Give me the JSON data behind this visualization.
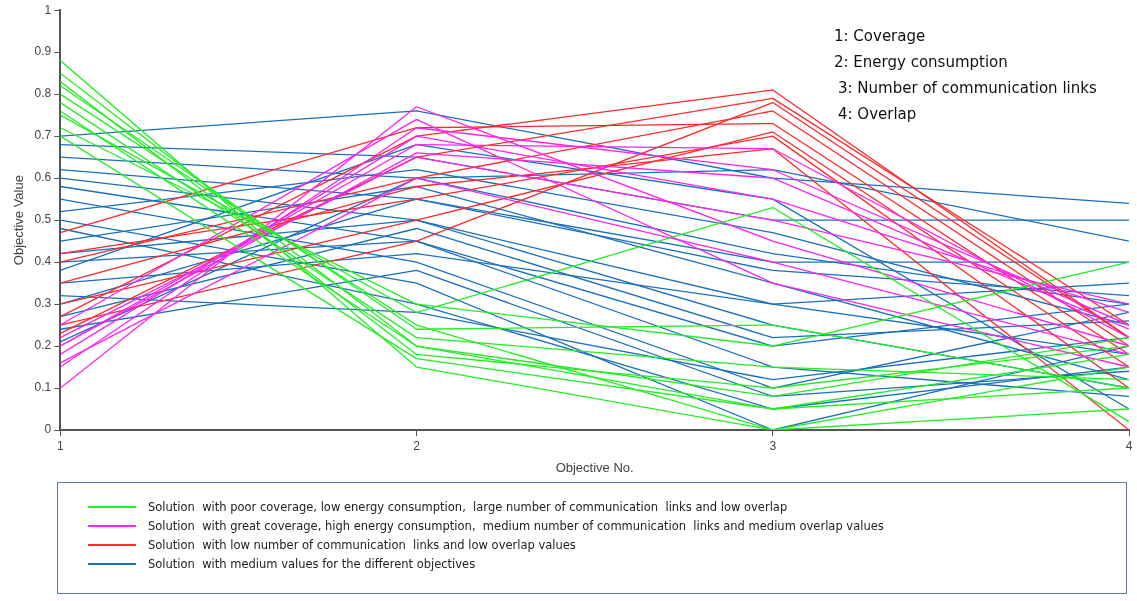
{
  "chart_data": {
    "type": "line",
    "xlabel": "Objective No.",
    "ylabel": "Objective Value",
    "x": [
      1,
      2,
      3,
      4
    ],
    "xlim": [
      1,
      4
    ],
    "xticks": [
      1,
      2,
      3,
      4
    ],
    "ylim": [
      0,
      1
    ],
    "yticks": [
      0,
      0.1,
      0.2,
      0.3,
      0.4,
      0.5,
      0.6,
      0.7,
      0.8,
      0.9,
      1
    ],
    "grid": false,
    "legend": "bottom",
    "marker": "none",
    "line_style": "solid",
    "annotations": [
      "1: Coverage",
      "2: Energy consumption",
      "3: Number of communication links",
      "4: Overlap"
    ],
    "series": [
      {
        "name": "Solution  with poor coverage, low energy consumption,  large number of communication  links and low overlap",
        "color": "#22ee22",
        "values": [
          0.88,
          0.15,
          0.0,
          0.05
        ]
      },
      {
        "color": "#22ee22",
        "values": [
          0.85,
          0.2,
          0.05,
          0.1
        ]
      },
      {
        "color": "#22ee22",
        "values": [
          0.83,
          0.18,
          0.1,
          0.2
        ]
      },
      {
        "color": "#22ee22",
        "values": [
          0.8,
          0.25,
          0.0,
          0.15
        ]
      },
      {
        "color": "#22ee22",
        "values": [
          0.78,
          0.22,
          0.15,
          0.12
        ]
      },
      {
        "color": "#22ee22",
        "values": [
          0.75,
          0.28,
          0.53,
          0.02
        ]
      },
      {
        "color": "#22ee22",
        "values": [
          0.72,
          0.3,
          0.2,
          0.4
        ]
      },
      {
        "color": "#22ee22",
        "values": [
          0.7,
          0.17,
          0.05,
          0.18
        ]
      },
      {
        "color": "#22ee22",
        "values": [
          0.82,
          0.24,
          0.25,
          0.1
        ]
      },
      {
        "color": "#22ee22",
        "values": [
          0.76,
          0.2,
          0.08,
          0.22
        ]
      },
      {
        "name": "Solution  with great coverage, high energy consumption,  medium number of communication  links and medium overlap values",
        "color": "#ff22ee",
        "values": [
          0.1,
          0.77,
          0.45,
          0.2
        ]
      },
      {
        "color": "#ff22ee",
        "values": [
          0.15,
          0.72,
          0.62,
          0.25
        ]
      },
      {
        "color": "#ff22ee",
        "values": [
          0.18,
          0.7,
          0.55,
          0.28
        ]
      },
      {
        "color": "#ff22ee",
        "values": [
          0.2,
          0.68,
          0.67,
          0.22
        ]
      },
      {
        "color": "#ff22ee",
        "values": [
          0.22,
          0.65,
          0.5,
          0.3
        ]
      },
      {
        "color": "#ff22ee",
        "values": [
          0.16,
          0.6,
          0.4,
          0.18
        ]
      },
      {
        "color": "#ff22ee",
        "values": [
          0.25,
          0.74,
          0.35,
          0.15
        ]
      },
      {
        "color": "#ff22ee",
        "values": [
          0.2,
          0.66,
          0.6,
          0.24
        ]
      },
      {
        "name": "Solution  with low number of communication  links and low overlap values",
        "color": "#ff2a2a",
        "values": [
          0.27,
          0.7,
          0.81,
          0.22
        ]
      },
      {
        "color": "#ff2a2a",
        "values": [
          0.23,
          0.65,
          0.79,
          0.25
        ]
      },
      {
        "color": "#ff2a2a",
        "values": [
          0.4,
          0.6,
          0.76,
          0.2
        ]
      },
      {
        "color": "#ff2a2a",
        "values": [
          0.47,
          0.72,
          0.73,
          0.18
        ]
      },
      {
        "color": "#ff2a2a",
        "values": [
          0.3,
          0.5,
          0.71,
          0.15
        ]
      },
      {
        "color": "#ff2a2a",
        "values": [
          0.35,
          0.58,
          0.67,
          0.0
        ]
      },
      {
        "color": "#ff2a2a",
        "values": [
          0.42,
          0.55,
          0.7,
          0.1
        ]
      },
      {
        "color": "#ff2a2a",
        "values": [
          0.25,
          0.45,
          0.78,
          0.22
        ]
      },
      {
        "name": "Solution  with medium values for the different objectives",
        "color": "#1a6fbd",
        "values": [
          0.7,
          0.76,
          0.6,
          0.54
        ]
      },
      {
        "color": "#1a6fbd",
        "values": [
          0.68,
          0.65,
          0.5,
          0.5
        ]
      },
      {
        "color": "#1a6fbd",
        "values": [
          0.65,
          0.6,
          0.62,
          0.45
        ]
      },
      {
        "color": "#1a6fbd",
        "values": [
          0.62,
          0.55,
          0.4,
          0.4
        ]
      },
      {
        "color": "#1a6fbd",
        "values": [
          0.6,
          0.5,
          0.3,
          0.35
        ]
      },
      {
        "color": "#1a6fbd",
        "values": [
          0.58,
          0.45,
          0.2,
          0.3
        ]
      },
      {
        "color": "#1a6fbd",
        "values": [
          0.55,
          0.4,
          0.1,
          0.28
        ]
      },
      {
        "color": "#1a6fbd",
        "values": [
          0.52,
          0.62,
          0.47,
          0.25
        ]
      },
      {
        "color": "#1a6fbd",
        "values": [
          0.5,
          0.35,
          0.0,
          0.2
        ]
      },
      {
        "color": "#1a6fbd",
        "values": [
          0.48,
          0.3,
          0.05,
          0.15
        ]
      },
      {
        "color": "#1a6fbd",
        "values": [
          0.45,
          0.58,
          0.35,
          0.12
        ]
      },
      {
        "color": "#1a6fbd",
        "values": [
          0.42,
          0.5,
          0.25,
          0.1
        ]
      },
      {
        "color": "#1a6fbd",
        "values": [
          0.4,
          0.45,
          0.15,
          0.08
        ]
      },
      {
        "color": "#1a6fbd",
        "values": [
          0.38,
          0.68,
          0.55,
          0.05
        ]
      },
      {
        "color": "#1a6fbd",
        "values": [
          0.35,
          0.42,
          0.3,
          0.18
        ]
      },
      {
        "color": "#1a6fbd",
        "values": [
          0.32,
          0.28,
          0.12,
          0.22
        ]
      },
      {
        "color": "#1a6fbd",
        "values": [
          0.3,
          0.55,
          0.38,
          0.32
        ]
      },
      {
        "color": "#1a6fbd",
        "values": [
          0.27,
          0.48,
          0.22,
          0.26
        ]
      },
      {
        "color": "#1a6fbd",
        "values": [
          0.24,
          0.38,
          0.08,
          0.14
        ]
      },
      {
        "color": "#1a6fbd",
        "values": [
          0.21,
          0.6,
          0.42,
          0.3
        ]
      }
    ]
  }
}
